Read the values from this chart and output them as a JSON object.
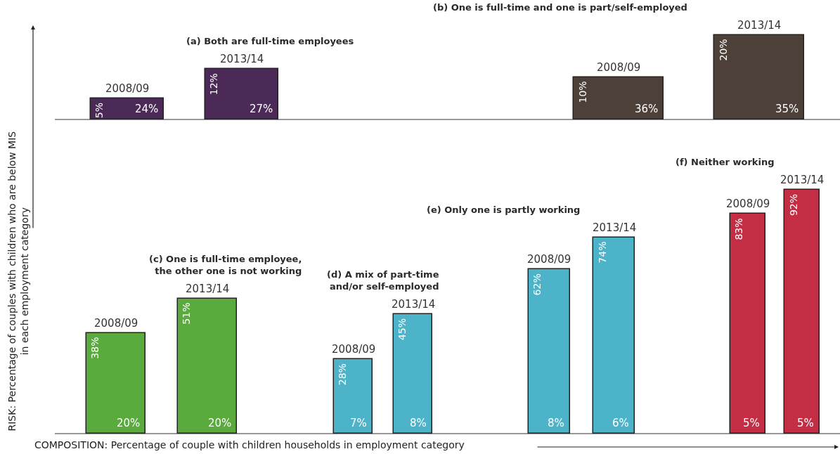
{
  "chart_data": [
    {
      "type": "bar",
      "title": "(a) Both are full-time employees",
      "categories": [
        "2008/09",
        "2013/14"
      ],
      "values": [
        5,
        12
      ],
      "value_labels": [
        "5%",
        "12%"
      ],
      "color": "#4b2a58",
      "annotations": [
        {
          "text": "24%",
          "x": "2008/09",
          "y": 0
        },
        {
          "text": "27%",
          "x": "2013/14",
          "y": 0
        }
      ]
    },
    {
      "type": "bar",
      "title": "(b) One is full-time and one is part/self-employed",
      "categories": [
        "2008/09",
        "2013/14"
      ],
      "values": [
        10,
        20
      ],
      "value_labels": [
        "10%",
        "20%"
      ],
      "color": "#4d4039",
      "annotations": [
        {
          "text": "36%",
          "x": "2008/09",
          "y": 0
        },
        {
          "text": "35%",
          "x": "2013/14",
          "y": 0
        }
      ]
    },
    {
      "type": "bar",
      "title": "(c) One is full-time employee,\nthe other one is not working",
      "categories": [
        "2008/09",
        "2013/14"
      ],
      "values": [
        38,
        51
      ],
      "value_labels": [
        "38%",
        "51%"
      ],
      "color": "#5aaa3e",
      "xlabel": "COMPOSITION: Percentage of couple with children households in employment category",
      "ylabel": "RISK: Percentage of couples with children who are below MIS\nin each employment category",
      "annotations": [
        {
          "text": "20%",
          "x": "2008/09",
          "y": 0
        },
        {
          "text": "20%",
          "x": "2013/14",
          "y": 0
        }
      ]
    },
    {
      "type": "bar",
      "title": "(d) A mix of part-time\nand/or self-employed",
      "categories": [
        "2008/09",
        "2013/14"
      ],
      "values": [
        28,
        45
      ],
      "value_labels": [
        "28%",
        "45%"
      ],
      "color": "#4cb3c8",
      "annotations": [
        {
          "text": "7%",
          "x": "2008/09",
          "y": 0
        },
        {
          "text": "8%",
          "x": "2013/14",
          "y": 0
        }
      ]
    },
    {
      "type": "bar",
      "title": "(e) Only one is partly working",
      "categories": [
        "2008/09",
        "2013/14"
      ],
      "values": [
        62,
        74
      ],
      "value_labels": [
        "62%",
        "74%"
      ],
      "color": "#4cb3c8",
      "annotations": [
        {
          "text": "8%",
          "x": "2008/09",
          "y": 0
        },
        {
          "text": "6%",
          "x": "2013/14",
          "y": 0
        }
      ]
    },
    {
      "type": "bar",
      "title": "(f) Neither working",
      "categories": [
        "2008/09",
        "2013/14"
      ],
      "values": [
        83,
        92
      ],
      "value_labels": [
        "83%",
        "92%"
      ],
      "color": "#c32e45",
      "annotations": [
        {
          "text": "5%",
          "x": "2008/09",
          "y": 0
        },
        {
          "text": "5%",
          "x": "2013/14",
          "y": 0
        }
      ]
    }
  ]
}
